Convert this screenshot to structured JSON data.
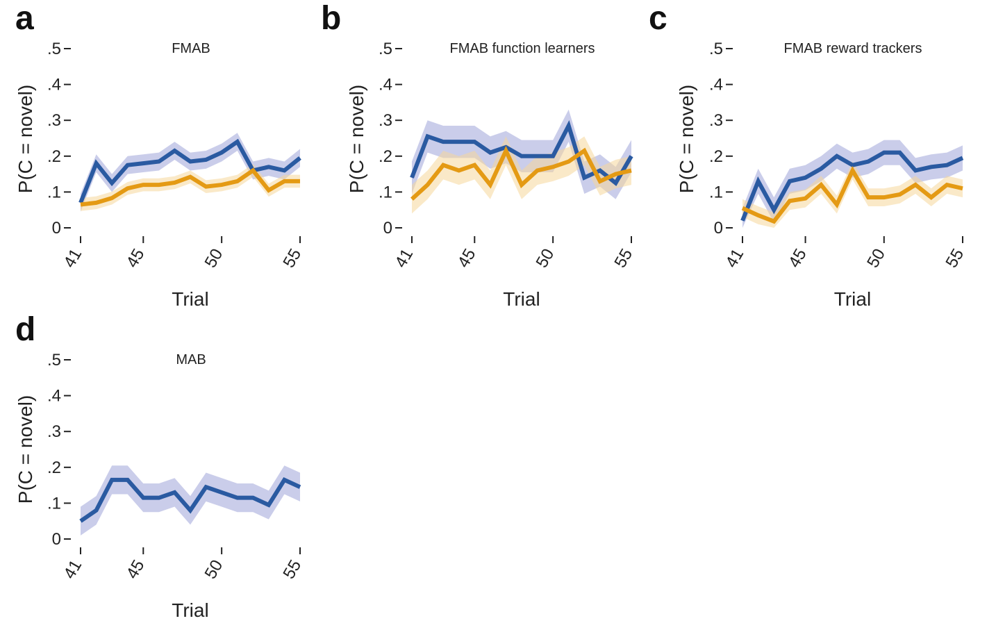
{
  "colors": {
    "blue": "#2a5aa1",
    "orange": "#e49a14",
    "blue_band": "#9ea4d8",
    "orange_band": "#f5d79a"
  },
  "chart_data": [
    {
      "panel": "a",
      "title": "FMAB",
      "type": "line",
      "xlabel": "Trial",
      "ylabel": "P(C = novel)",
      "ylim": [
        0,
        0.5
      ],
      "yticks": [
        0,
        0.1,
        0.2,
        0.3,
        0.4,
        0.5
      ],
      "ytick_labels": [
        "0",
        ".1",
        ".2",
        ".3",
        ".4",
        ".5"
      ],
      "xlim": [
        41,
        55
      ],
      "xticks": [
        41,
        45,
        50,
        55
      ],
      "x": [
        41,
        42,
        43,
        44,
        45,
        46,
        47,
        48,
        49,
        50,
        51,
        52,
        53,
        54,
        55
      ],
      "series": [
        {
          "color": "blue",
          "values": [
            0.07,
            0.18,
            0.125,
            0.175,
            0.18,
            0.185,
            0.215,
            0.185,
            0.19,
            0.21,
            0.24,
            0.16,
            0.17,
            0.16,
            0.195
          ],
          "band": 0.025
        },
        {
          "color": "orange",
          "values": [
            0.065,
            0.07,
            0.083,
            0.11,
            0.12,
            0.12,
            0.126,
            0.142,
            0.115,
            0.12,
            0.13,
            0.16,
            0.105,
            0.13,
            0.13
          ],
          "band": 0.018
        }
      ]
    },
    {
      "panel": "b",
      "title": "FMAB function learners",
      "type": "line",
      "xlabel": "Trial",
      "ylabel": "P(C = novel)",
      "ylim": [
        0,
        0.5
      ],
      "yticks": [
        0,
        0.1,
        0.2,
        0.3,
        0.4,
        0.5
      ],
      "ytick_labels": [
        "0",
        ".1",
        ".2",
        ".3",
        ".4",
        ".5"
      ],
      "xlim": [
        41,
        55
      ],
      "xticks": [
        41,
        45,
        50,
        55
      ],
      "x": [
        41,
        42,
        43,
        44,
        45,
        46,
        47,
        48,
        49,
        50,
        51,
        52,
        53,
        54,
        55
      ],
      "series": [
        {
          "color": "blue",
          "values": [
            0.14,
            0.255,
            0.24,
            0.24,
            0.24,
            0.21,
            0.225,
            0.2,
            0.2,
            0.2,
            0.285,
            0.14,
            0.16,
            0.125,
            0.2
          ],
          "band": 0.045
        },
        {
          "color": "orange",
          "values": [
            0.08,
            0.12,
            0.175,
            0.16,
            0.175,
            0.12,
            0.215,
            0.12,
            0.16,
            0.17,
            0.185,
            0.215,
            0.13,
            0.15,
            0.16
          ],
          "band": 0.04
        }
      ]
    },
    {
      "panel": "c",
      "title": "FMAB reward trackers",
      "type": "line",
      "xlabel": "Trial",
      "ylabel": "P(C = novel)",
      "ylim": [
        0,
        0.5
      ],
      "yticks": [
        0,
        0.1,
        0.2,
        0.3,
        0.4,
        0.5
      ],
      "ytick_labels": [
        "0",
        ".1",
        ".2",
        ".3",
        ".4",
        ".5"
      ],
      "xlim": [
        41,
        55
      ],
      "xticks": [
        41,
        45,
        50,
        55
      ],
      "x": [
        41,
        42,
        43,
        44,
        45,
        46,
        47,
        48,
        49,
        50,
        51,
        52,
        53,
        54,
        55
      ],
      "series": [
        {
          "color": "blue",
          "values": [
            0.02,
            0.13,
            0.05,
            0.13,
            0.14,
            0.165,
            0.2,
            0.175,
            0.185,
            0.21,
            0.21,
            0.16,
            0.17,
            0.175,
            0.195
          ],
          "band": 0.035
        },
        {
          "color": "orange",
          "values": [
            0.055,
            0.035,
            0.018,
            0.075,
            0.082,
            0.12,
            0.065,
            0.16,
            0.085,
            0.085,
            0.093,
            0.12,
            0.085,
            0.12,
            0.11
          ],
          "band": 0.025
        }
      ]
    },
    {
      "panel": "d",
      "title": "MAB",
      "type": "line",
      "xlabel": "Trial",
      "ylabel": "P(C = novel)",
      "ylim": [
        0,
        0.5
      ],
      "yticks": [
        0,
        0.1,
        0.2,
        0.3,
        0.4,
        0.5
      ],
      "ytick_labels": [
        "0",
        ".1",
        ".2",
        ".3",
        ".4",
        ".5"
      ],
      "xlim": [
        41,
        55
      ],
      "xticks": [
        41,
        45,
        50,
        55
      ],
      "x": [
        41,
        42,
        43,
        44,
        45,
        46,
        47,
        48,
        49,
        50,
        51,
        52,
        53,
        54,
        55
      ],
      "series": [
        {
          "color": "blue",
          "values": [
            0.05,
            0.08,
            0.165,
            0.165,
            0.115,
            0.115,
            0.13,
            0.08,
            0.145,
            0.13,
            0.115,
            0.115,
            0.095,
            0.165,
            0.145
          ],
          "band": 0.04
        }
      ]
    }
  ]
}
